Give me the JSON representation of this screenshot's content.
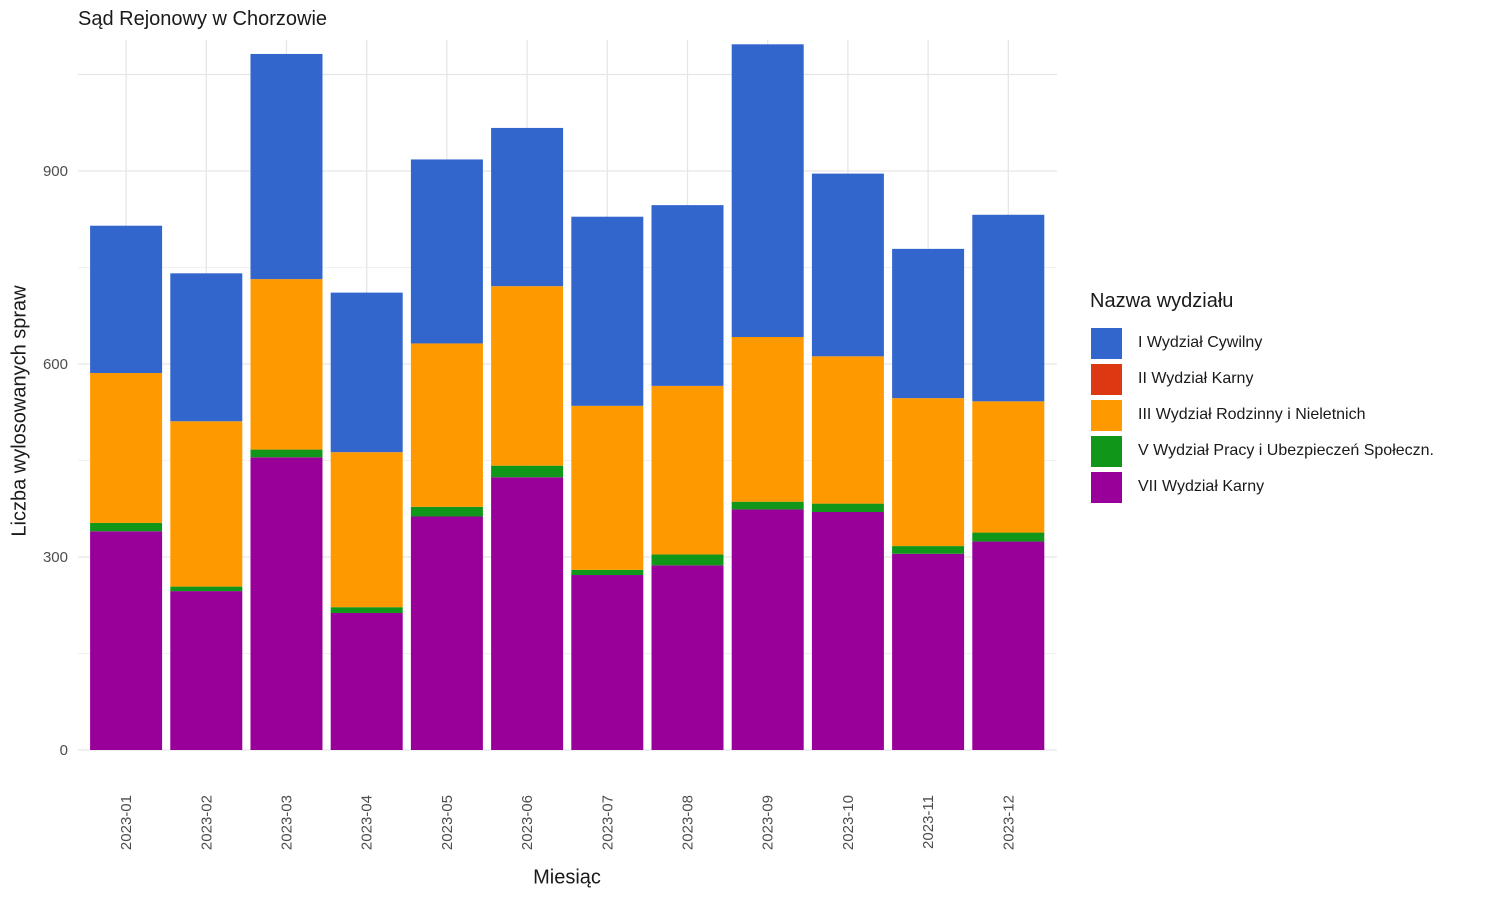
{
  "chart_data": {
    "type": "bar",
    "stacked": true,
    "title": "Sąd Rejonowy w Chorzowie",
    "xlabel": "Miesiąc",
    "ylabel": "Liczba wylosowanych spraw",
    "ylim": [
      0,
      1100
    ],
    "yticks": [
      0,
      300,
      600,
      900
    ],
    "grid": true,
    "legend_position": "right",
    "legend_title": "Nazwa wydziału",
    "categories": [
      "2023-01",
      "2023-02",
      "2023-03",
      "2023-04",
      "2023-05",
      "2023-06",
      "2023-07",
      "2023-08",
      "2023-09",
      "2023-10",
      "2023-11",
      "2023-12"
    ],
    "legend_order": [
      "I Wydział Cywilny",
      "II Wydział Karny",
      "III Wydział Rodzinny i Nieletnich",
      "V Wydział Pracy i Ubezpieczeń Społeczn.",
      "VII Wydział Karny"
    ],
    "series": [
      {
        "name": "VII Wydział Karny",
        "color": "#990099",
        "values": [
          340,
          247,
          455,
          213,
          363,
          424,
          272,
          287,
          374,
          370,
          305,
          324
        ]
      },
      {
        "name": "V Wydział Pracy i Ubezpieczeń Społeczn.",
        "color": "#109618",
        "values": [
          13,
          7,
          12,
          9,
          15,
          18,
          8,
          17,
          12,
          13,
          12,
          14
        ]
      },
      {
        "name": "II Wydział Karny",
        "color": "#DC3912",
        "values": [
          0,
          0,
          0,
          0,
          0,
          0,
          0,
          0,
          0,
          0,
          0,
          0
        ]
      },
      {
        "name": "III Wydział Rodzinny i Nieletnich",
        "color": "#FF9900",
        "values": [
          233,
          257,
          265,
          241,
          254,
          279,
          255,
          262,
          256,
          229,
          230,
          204
        ]
      },
      {
        "name": "I Wydział Cywilny",
        "color": "#3366CC",
        "values": [
          229,
          230,
          350,
          248,
          286,
          246,
          294,
          281,
          455,
          284,
          232,
          290
        ]
      }
    ]
  }
}
